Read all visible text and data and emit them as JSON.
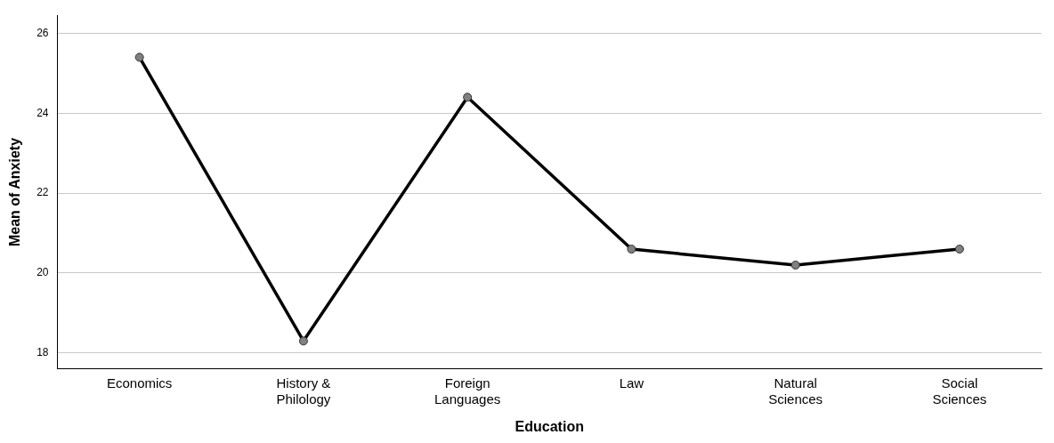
{
  "chart_data": {
    "type": "line",
    "xlabel": "Education",
    "ylabel": "Mean of Anxiety",
    "categories": [
      "Economics",
      "History & Philology",
      "Foreign Languages",
      "Law",
      "Natural Sciences",
      "Social Sciences"
    ],
    "series": [
      {
        "color": "#000000",
        "values": [
          25.4,
          18.3,
          24.4,
          20.6,
          20.2,
          20.6
        ]
      }
    ],
    "ylim": [
      17.6,
      26.45
    ],
    "yticks": [
      18,
      20,
      22,
      24,
      26
    ],
    "grid": "y",
    "legend": false,
    "marker": "circle",
    "line_style": "solid"
  }
}
